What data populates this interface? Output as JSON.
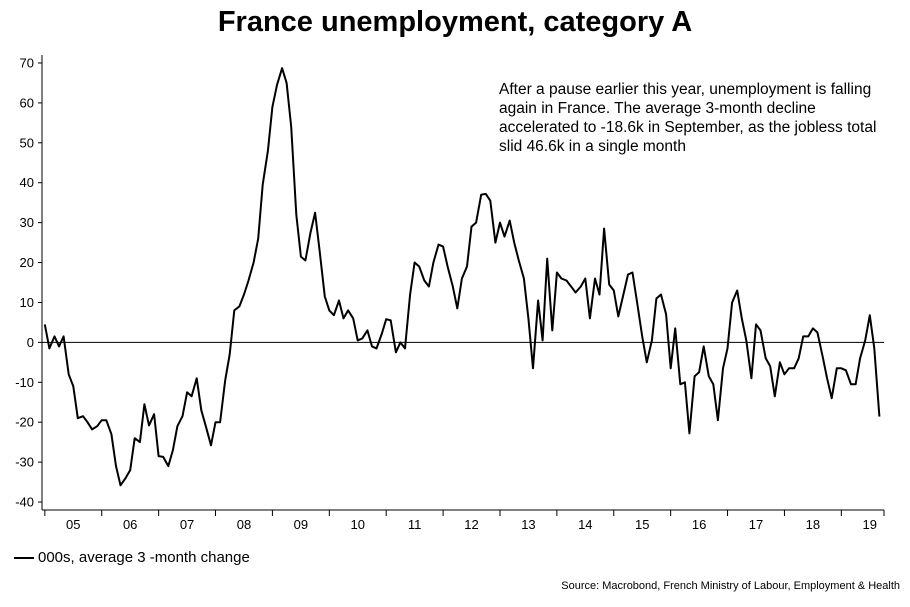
{
  "title": "France unemployment, category A",
  "annotation": "After a pause earlier this year, unemployment is falling again in France. The average 3-month decline accelerated to -18.6k in September, as the jobless total slid 46.6k in a single month",
  "source": "Source: Macrobond, French Ministry of Labour, Employment & Health",
  "chart_data": {
    "type": "line",
    "title": "France unemployment, category A",
    "xlabel": "",
    "ylabel": "",
    "ylim": [
      -42,
      72
    ],
    "yticks": [
      70,
      60,
      50,
      40,
      30,
      20,
      10,
      0,
      -10,
      -20,
      -30,
      -40
    ],
    "xlim": [
      2004.95,
      2019.75
    ],
    "xticks": [
      {
        "label": "05",
        "value": 2005.5
      },
      {
        "label": "06",
        "value": 2006.5
      },
      {
        "label": "07",
        "value": 2007.5
      },
      {
        "label": "08",
        "value": 2008.5
      },
      {
        "label": "09",
        "value": 2009.5
      },
      {
        "label": "10",
        "value": 2010.5
      },
      {
        "label": "11",
        "value": 2011.5
      },
      {
        "label": "12",
        "value": 2012.5
      },
      {
        "label": "13",
        "value": 2013.5
      },
      {
        "label": "14",
        "value": 2014.5
      },
      {
        "label": "15",
        "value": 2015.5
      },
      {
        "label": "16",
        "value": 2016.5
      },
      {
        "label": "17",
        "value": 2017.5
      },
      {
        "label": "18",
        "value": 2018.5
      },
      {
        "label": "19",
        "value": 2019.5
      }
    ],
    "zero_line": true,
    "grid": false,
    "legend_position": "bottom-left",
    "series": [
      {
        "name": "000s, average 3 -month change",
        "color": "#000000",
        "points": [
          [
            2005.0,
            4.5
          ],
          [
            2005.08,
            -1.5
          ],
          [
            2005.17,
            1.5
          ],
          [
            2005.25,
            -1.0
          ],
          [
            2005.33,
            1.5
          ],
          [
            2005.42,
            -8.0
          ],
          [
            2005.5,
            -11.0
          ],
          [
            2005.58,
            -19.0
          ],
          [
            2005.67,
            -18.5
          ],
          [
            2005.75,
            -20.0
          ],
          [
            2005.83,
            -21.8
          ],
          [
            2005.92,
            -21.0
          ],
          [
            2006.0,
            -19.5
          ],
          [
            2006.08,
            -19.5
          ],
          [
            2006.17,
            -23.0
          ],
          [
            2006.25,
            -31.0
          ],
          [
            2006.33,
            -35.8
          ],
          [
            2006.42,
            -34.0
          ],
          [
            2006.5,
            -32.0
          ],
          [
            2006.58,
            -24.0
          ],
          [
            2006.67,
            -25.0
          ],
          [
            2006.75,
            -15.5
          ],
          [
            2006.83,
            -20.8
          ],
          [
            2006.92,
            -18.0
          ],
          [
            2007.0,
            -28.5
          ],
          [
            2007.08,
            -28.7
          ],
          [
            2007.17,
            -31.0
          ],
          [
            2007.25,
            -27.0
          ],
          [
            2007.33,
            -21.0
          ],
          [
            2007.42,
            -18.5
          ],
          [
            2007.5,
            -12.5
          ],
          [
            2007.58,
            -13.5
          ],
          [
            2007.67,
            -9.0
          ],
          [
            2007.75,
            -17.0
          ],
          [
            2007.83,
            -21.0
          ],
          [
            2007.92,
            -25.8
          ],
          [
            2008.0,
            -20.0
          ],
          [
            2008.08,
            -20.0
          ],
          [
            2008.17,
            -9.5
          ],
          [
            2008.25,
            -3.0
          ],
          [
            2008.33,
            8.0
          ],
          [
            2008.42,
            9.0
          ],
          [
            2008.5,
            12.0
          ],
          [
            2008.58,
            15.5
          ],
          [
            2008.67,
            20.0
          ],
          [
            2008.75,
            26.0
          ],
          [
            2008.83,
            39.5
          ],
          [
            2008.92,
            48.0
          ],
          [
            2009.0,
            59.0
          ],
          [
            2009.08,
            64.5
          ],
          [
            2009.17,
            68.7
          ],
          [
            2009.25,
            65.0
          ],
          [
            2009.33,
            54.0
          ],
          [
            2009.42,
            32.0
          ],
          [
            2009.5,
            21.5
          ],
          [
            2009.58,
            20.5
          ],
          [
            2009.67,
            27.5
          ],
          [
            2009.75,
            32.5
          ],
          [
            2009.83,
            23.0
          ],
          [
            2009.92,
            11.5
          ],
          [
            2010.0,
            8.0
          ],
          [
            2010.08,
            6.8
          ],
          [
            2010.17,
            10.5
          ],
          [
            2010.25,
            6.0
          ],
          [
            2010.33,
            8.0
          ],
          [
            2010.42,
            6.0
          ],
          [
            2010.5,
            0.5
          ],
          [
            2010.58,
            1.0
          ],
          [
            2010.67,
            3.0
          ],
          [
            2010.75,
            -1.0
          ],
          [
            2010.83,
            -1.5
          ],
          [
            2010.92,
            2.0
          ],
          [
            2011.0,
            5.8
          ],
          [
            2011.08,
            5.5
          ],
          [
            2011.17,
            -2.5
          ],
          [
            2011.25,
            0.0
          ],
          [
            2011.33,
            -1.5
          ],
          [
            2011.42,
            12.0
          ],
          [
            2011.5,
            20.0
          ],
          [
            2011.58,
            19.0
          ],
          [
            2011.67,
            15.5
          ],
          [
            2011.75,
            14.0
          ],
          [
            2011.83,
            20.0
          ],
          [
            2011.92,
            24.5
          ],
          [
            2012.0,
            24.0
          ],
          [
            2012.08,
            19.0
          ],
          [
            2012.17,
            14.0
          ],
          [
            2012.25,
            8.5
          ],
          [
            2012.33,
            16.0
          ],
          [
            2012.42,
            19.0
          ],
          [
            2012.5,
            29.0
          ],
          [
            2012.58,
            30.0
          ],
          [
            2012.67,
            37.0
          ],
          [
            2012.75,
            37.2
          ],
          [
            2012.83,
            35.5
          ],
          [
            2012.92,
            25.0
          ],
          [
            2013.0,
            30.0
          ],
          [
            2013.08,
            26.5
          ],
          [
            2013.17,
            30.5
          ],
          [
            2013.25,
            25.0
          ],
          [
            2013.33,
            20.5
          ],
          [
            2013.42,
            16.0
          ],
          [
            2013.5,
            6.0
          ],
          [
            2013.58,
            -6.5
          ],
          [
            2013.67,
            10.5
          ],
          [
            2013.75,
            0.5
          ],
          [
            2013.83,
            21.0
          ],
          [
            2013.92,
            3.0
          ],
          [
            2014.0,
            17.5
          ],
          [
            2014.08,
            16.0
          ],
          [
            2014.17,
            15.5
          ],
          [
            2014.25,
            14.0
          ],
          [
            2014.33,
            12.5
          ],
          [
            2014.42,
            14.0
          ],
          [
            2014.5,
            16.0
          ],
          [
            2014.58,
            6.0
          ],
          [
            2014.67,
            16.0
          ],
          [
            2014.75,
            12.0
          ],
          [
            2014.83,
            28.5
          ],
          [
            2014.92,
            14.5
          ],
          [
            2015.0,
            13.0
          ],
          [
            2015.08,
            6.5
          ],
          [
            2015.17,
            12.0
          ],
          [
            2015.25,
            17.0
          ],
          [
            2015.33,
            17.5
          ],
          [
            2015.42,
            9.0
          ],
          [
            2015.5,
            1.5
          ],
          [
            2015.58,
            -5.0
          ],
          [
            2015.67,
            0.5
          ],
          [
            2015.75,
            11.0
          ],
          [
            2015.83,
            12.0
          ],
          [
            2015.92,
            7.0
          ],
          [
            2016.0,
            -6.5
          ],
          [
            2016.08,
            3.5
          ],
          [
            2016.17,
            -10.5
          ],
          [
            2016.25,
            -10.0
          ],
          [
            2016.33,
            -22.8
          ],
          [
            2016.42,
            -8.5
          ],
          [
            2016.5,
            -7.5
          ],
          [
            2016.58,
            -1.0
          ],
          [
            2016.67,
            -8.5
          ],
          [
            2016.75,
            -10.5
          ],
          [
            2016.83,
            -19.5
          ],
          [
            2016.92,
            -6.5
          ],
          [
            2017.0,
            -1.5
          ],
          [
            2017.08,
            10.0
          ],
          [
            2017.17,
            13.0
          ],
          [
            2017.25,
            6.0
          ],
          [
            2017.33,
            0.5
          ],
          [
            2017.42,
            -9.0
          ],
          [
            2017.5,
            4.5
          ],
          [
            2017.58,
            3.0
          ],
          [
            2017.67,
            -4.0
          ],
          [
            2017.75,
            -6.0
          ],
          [
            2017.83,
            -13.5
          ],
          [
            2017.92,
            -5.0
          ],
          [
            2018.0,
            -8.0
          ],
          [
            2018.08,
            -6.5
          ],
          [
            2018.17,
            -6.5
          ],
          [
            2018.25,
            -4.0
          ],
          [
            2018.33,
            1.5
          ],
          [
            2018.42,
            1.5
          ],
          [
            2018.5,
            3.5
          ],
          [
            2018.58,
            2.5
          ],
          [
            2018.67,
            -3.5
          ],
          [
            2018.75,
            -9.0
          ],
          [
            2018.83,
            -14.0
          ],
          [
            2018.92,
            -6.5
          ],
          [
            2019.0,
            -6.5
          ],
          [
            2019.08,
            -7.0
          ],
          [
            2019.17,
            -10.5
          ],
          [
            2019.25,
            -10.5
          ],
          [
            2019.33,
            -4.0
          ],
          [
            2019.42,
            0.5
          ],
          [
            2019.5,
            6.8
          ],
          [
            2019.58,
            -1.5
          ],
          [
            2019.67,
            -18.6
          ]
        ]
      }
    ]
  }
}
